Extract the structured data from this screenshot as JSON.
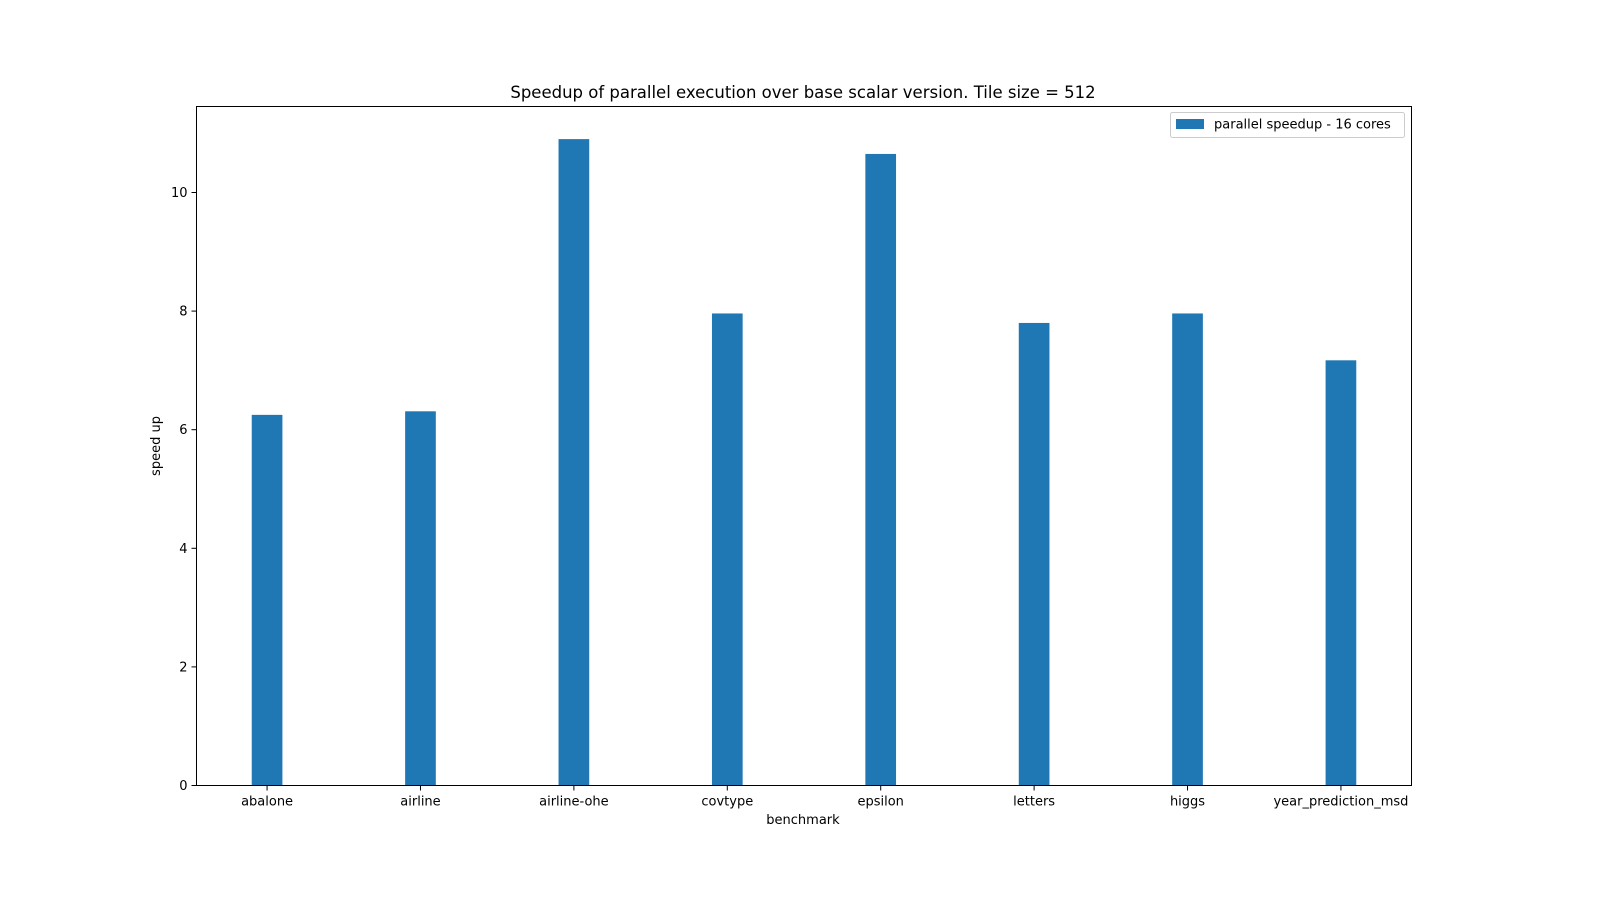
{
  "chart_data": {
    "type": "bar",
    "title": "Speedup of parallel execution over base scalar version. Tile size = 512",
    "xlabel": "benchmark",
    "ylabel": "speed up",
    "categories": [
      "abalone",
      "airline",
      "airline-ohe",
      "covtype",
      "epsilon",
      "letters",
      "higgs",
      "year_prediction_msd"
    ],
    "series": [
      {
        "name": "parallel speedup - 16 cores",
        "color": "#1f77b4",
        "values": [
          6.25,
          6.31,
          10.9,
          7.96,
          10.65,
          7.8,
          7.96,
          7.17
        ]
      }
    ],
    "ylim": [
      0,
      11.45
    ],
    "yticks": [
      0,
      2,
      4,
      6,
      8,
      10
    ],
    "ytick_labels": [
      "0",
      "2",
      "4",
      "6",
      "8",
      "10"
    ],
    "grid": false,
    "legend_position": "top-right"
  }
}
